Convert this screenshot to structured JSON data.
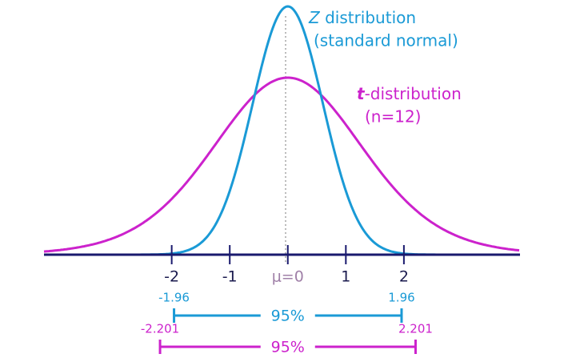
{
  "axis": {
    "xlim": [
      -4.2,
      4.0
    ],
    "ticks": [
      {
        "value": -2,
        "label": "-2"
      },
      {
        "value": -1,
        "label": "-1"
      },
      {
        "value": 0,
        "label": "μ=0"
      },
      {
        "value": 1,
        "label": "1"
      },
      {
        "value": 2,
        "label": "2"
      }
    ]
  },
  "z_curve": {
    "symbol": "Z",
    "name": "distribution",
    "subtitle": "(standard normal)",
    "color": "#1a9ad6"
  },
  "t_curve": {
    "symbol": "t",
    "name": "-distribution",
    "subtitle": "(n=12)",
    "color": "#cc22cc"
  },
  "intervals": [
    {
      "low": -1.96,
      "high": 1.96,
      "label": "95%",
      "color": "#1a9ad6"
    },
    {
      "low": -2.201,
      "high": 2.201,
      "label": "95%",
      "color": "#cc22cc"
    }
  ]
}
